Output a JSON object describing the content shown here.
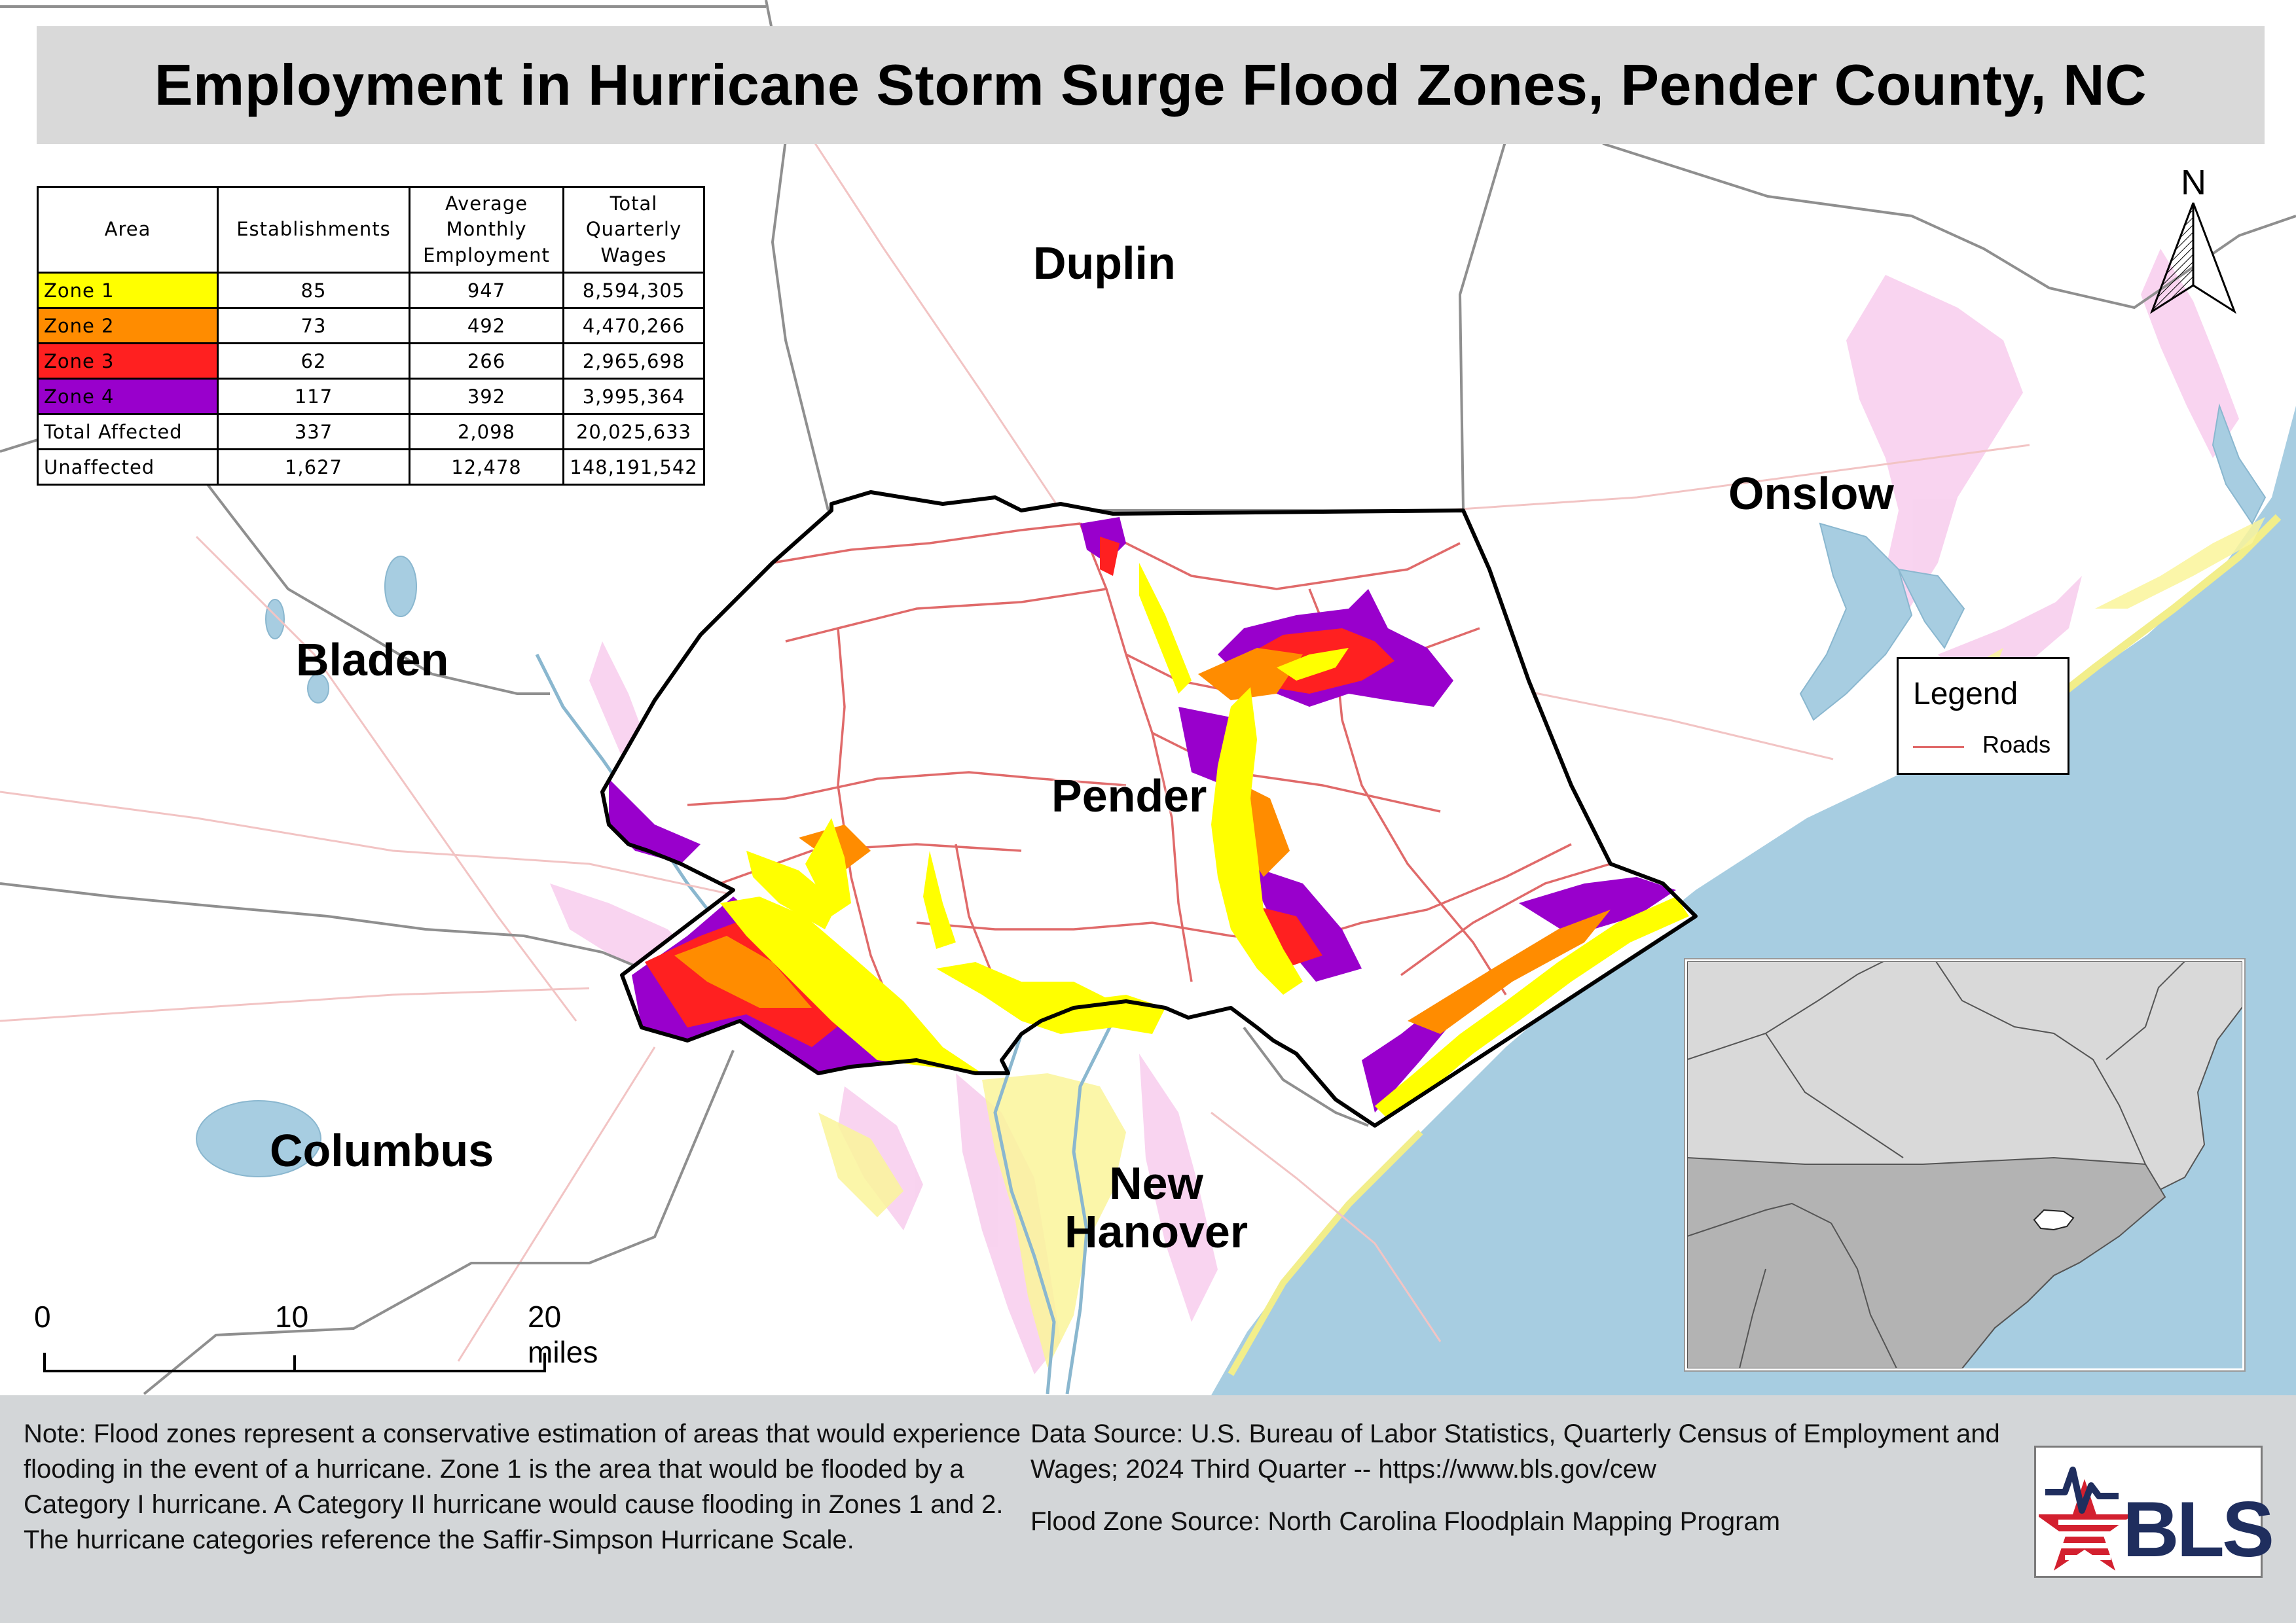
{
  "title": "Employment in Hurricane Storm Surge Flood Zones, Pender County, NC",
  "counties": {
    "duplin": "Duplin",
    "onslow": "Onslow",
    "bladen": "Bladen",
    "pender": "Pender",
    "columbus": "Columbus",
    "new_hanover_line1": "New",
    "new_hanover_line2": "Hanover"
  },
  "table": {
    "headers": {
      "area": "Area",
      "establishments": "Establishments",
      "employment_l1": "Average",
      "employment_l2": "Monthly",
      "employment_l3": "Employment",
      "wages_l1": "Total",
      "wages_l2": "Quarterly",
      "wages_l3": "Wages"
    },
    "rows": [
      {
        "area": "Zone 1",
        "establishments": "85",
        "employment": "947",
        "wages": "8,594,305",
        "color": "#ffff00"
      },
      {
        "area": "Zone 2",
        "establishments": "73",
        "employment": "492",
        "wages": "4,470,266",
        "color": "#ff8c00"
      },
      {
        "area": "Zone 3",
        "establishments": "62",
        "employment": "266",
        "wages": "2,965,698",
        "color": "#ff2020"
      },
      {
        "area": "Zone 4",
        "establishments": "117",
        "employment": "392",
        "wages": "3,995,364",
        "color": "#9900cc"
      },
      {
        "area": "Total Affected",
        "establishments": "337",
        "employment": "2,098",
        "wages": "20,025,633",
        "color": "#ffffff"
      },
      {
        "area": "Unaffected",
        "establishments": "1,627",
        "employment": "12,478",
        "wages": "148,191,542",
        "color": "#ffffff"
      }
    ]
  },
  "legend": {
    "title": "Legend",
    "roads_label": "Roads",
    "roads_color": "#e06a6a"
  },
  "north_label": "N",
  "scale_bar": {
    "label_0": "0",
    "label_10": "10",
    "label_20": "20 miles"
  },
  "colors": {
    "water": "#a7cde1",
    "inset_land": "#b3b3b3",
    "inset_states": "#d9d9d9",
    "zone1": "#ffff00",
    "zone2": "#ff8c00",
    "zone3": "#ff2020",
    "zone4": "#9900cc",
    "bls_blue": "#1f2e5e",
    "bls_red": "#d3202f"
  },
  "note": "Note: Flood zones represent a conservative estimation of areas that would experience flooding in the event of a hurricane. Zone 1 is the area that would be flooded by a Category I hurricane. A Category II hurricane would cause flooding in Zones 1 and 2. The hurricane categories reference the Saffir-Simpson Hurricane Scale.",
  "data_source": "Data Source: U.S. Bureau of Labor Statistics, Quarterly Census of Employment and Wages; 2024 Third Quarter -- https://www.bls.gov/cew",
  "flood_source": "Flood Zone Source: North Carolina Floodplain Mapping Program",
  "logo_text": "BLS"
}
